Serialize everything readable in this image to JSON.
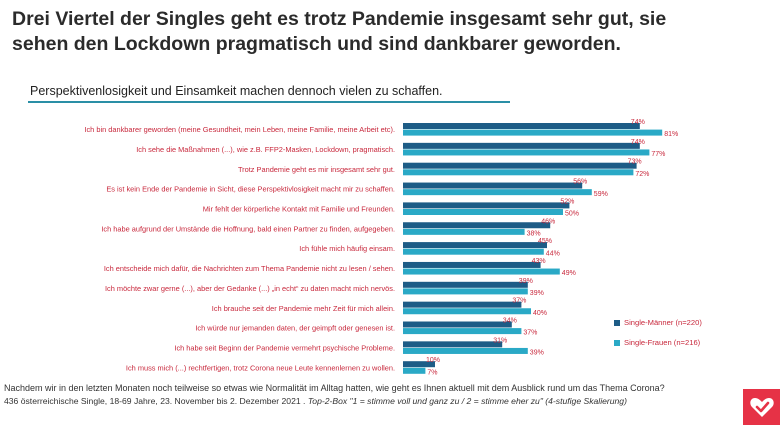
{
  "headline": "Drei Viertel der Singles geht es trotz Pandemie insgesamt sehr gut, sie sehen den Lockdown pragmatisch und sind dankbarer geworden.",
  "subheadline": "Perspektivenlosigkeit und Einsamkeit machen dennoch vielen zu schaffen.",
  "colors": {
    "men": "#1d5c86",
    "women": "#2aa9c6",
    "label": "#c8283c",
    "accent_line": "#2a8fa6",
    "logo": "#e63246"
  },
  "logo_icon": "heart-check-icon",
  "legend": [
    {
      "label": "Single-Männer (n=220)",
      "color": "#1d5c86"
    },
    {
      "label": "Single-Frauen (n=216)",
      "color": "#2aa9c6"
    }
  ],
  "chart_data": {
    "type": "bar",
    "orientation": "horizontal",
    "categories": [
      "Ich bin dankbarer geworden (meine Gesundheit, mein Leben, meine Familie, meine Arbeit etc).",
      "Ich sehe die Maßnahmen (...), wie z.B. FFP2-Masken, Lockdown, pragmatisch.",
      "Trotz Pandemie geht es mir insgesamt sehr gut.",
      "Es ist kein Ende der Pandemie in Sicht, diese Perspektivlosigkeit macht mir zu schaffen.",
      "Mir fehlt der körperliche Kontakt mit Familie und Freunden.",
      "Ich habe aufgrund der Umstände die Hoffnung, bald einen Partner zu finden, aufgegeben.",
      "Ich fühle mich häufig einsam.",
      "Ich entscheide mich dafür, die Nachrichten zum Thema Pandemie nicht zu lesen / sehen.",
      "Ich möchte zwar gerne (...), aber der Gedanke (...) „in echt“ zu daten macht mich nervös.",
      "Ich brauche seit der Pandemie mehr Zeit für mich allein.",
      "Ich würde nur jemanden daten, der geimpft oder genesen ist.",
      "Ich habe seit Beginn der Pandemie vermehrt psychische Probleme.",
      "Ich muss mich (...) rechtfertigen, trotz Corona neue Leute kennenlernen zu wollen."
    ],
    "series": [
      {
        "name": "Single-Männer (n=220)",
        "values": [
          74,
          74,
          73,
          56,
          52,
          46,
          45,
          43,
          39,
          37,
          34,
          31,
          10
        ]
      },
      {
        "name": "Single-Frauen (n=216)",
        "values": [
          81,
          77,
          72,
          59,
          50,
          38,
          44,
          49,
          39,
          40,
          37,
          39,
          7
        ]
      }
    ],
    "value_suffix": "%",
    "xlim": [
      0,
      100
    ],
    "grid": false
  },
  "footer": {
    "question": "Nachdem wir in den letzten Monaten noch teilweise so etwas wie Normalität im Alltag hatten, wie geht es Ihnen aktuell mit dem Ausblick rund um das Thema Corona?",
    "sample": "436 österreichische Single, 18-69 Jahre, 23. November bis 2. Dezember 2021 .",
    "scale": "Top-2-Box \"1 = stimme voll und ganz zu / 2 = stimme eher zu\" (4-stufige Skalierung)"
  }
}
